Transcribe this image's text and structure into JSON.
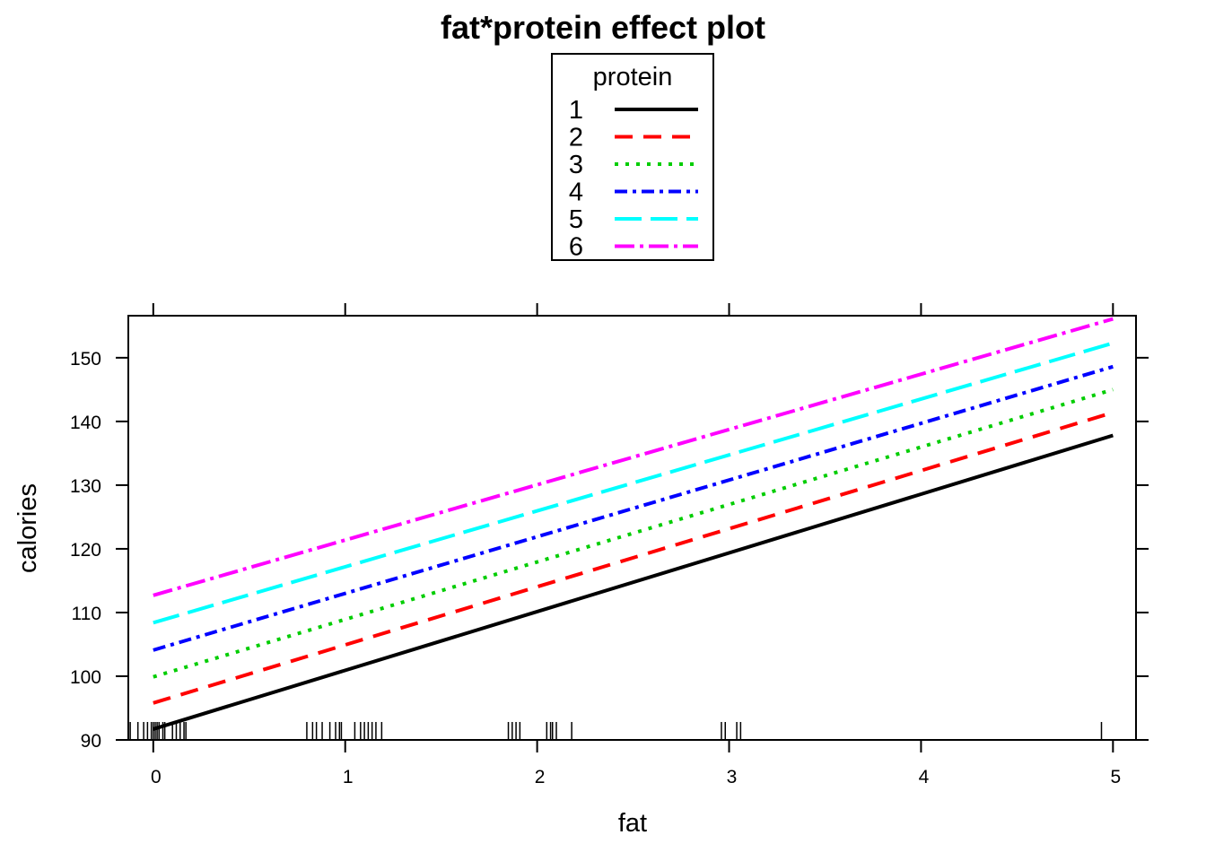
{
  "chart_data": {
    "type": "line",
    "title": "fat*protein effect plot",
    "xlabel": "fat",
    "ylabel": "calories",
    "xlim": [
      -0.13,
      5.12
    ],
    "ylim": [
      90,
      156.6
    ],
    "xticks": [
      0,
      1,
      2,
      3,
      4,
      5
    ],
    "yticks": [
      90,
      100,
      110,
      120,
      130,
      140,
      150
    ],
    "legend": {
      "title": "protein",
      "placement": "top-center"
    },
    "x": [
      0,
      5
    ],
    "series": [
      {
        "name": "1",
        "values": [
          91.7,
          137.8
        ],
        "color": "#000000",
        "dash": "solid",
        "width": 4
      },
      {
        "name": "2",
        "values": [
          95.8,
          141.4
        ],
        "color": "#ff0000",
        "dash": "20 12",
        "width": 4
      },
      {
        "name": "3",
        "values": [
          99.9,
          145.0
        ],
        "color": "#00cd00",
        "dash": "4 8",
        "width": 4
      },
      {
        "name": "4",
        "values": [
          104.1,
          148.6
        ],
        "color": "#0000ff",
        "dash": "14 6 4 6",
        "width": 4
      },
      {
        "name": "5",
        "values": [
          108.4,
          152.3
        ],
        "color": "#00ffff",
        "dash": "30 10",
        "width": 4
      },
      {
        "name": "6",
        "values": [
          112.7,
          156.1
        ],
        "color": "#ff00ff",
        "dash": "22 6 4 6",
        "width": 4
      }
    ],
    "rug_x": [
      -0.12,
      -0.08,
      -0.05,
      -0.03,
      -0.01,
      0.0,
      0.01,
      0.02,
      0.03,
      0.05,
      0.06,
      0.1,
      0.12,
      0.14,
      0.16,
      0.17,
      0.8,
      0.83,
      0.85,
      0.88,
      0.92,
      0.95,
      0.97,
      0.98,
      1.05,
      1.08,
      1.1,
      1.12,
      1.14,
      1.16,
      1.19,
      1.85,
      1.87,
      1.89,
      1.91,
      2.05,
      2.07,
      2.08,
      2.1,
      2.18,
      2.96,
      2.98,
      3.04,
      3.06,
      4.94
    ]
  }
}
